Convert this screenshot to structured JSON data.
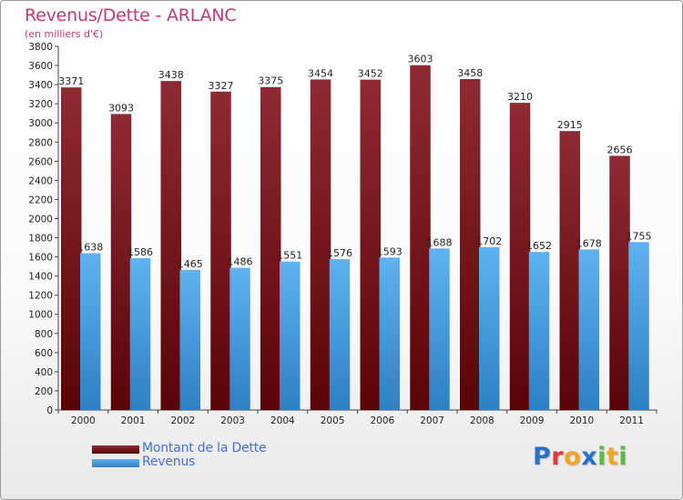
{
  "chart_data": {
    "type": "bar",
    "title": "Revenus/Dette - ARLANC",
    "subtitle": "(en milliers d'€)",
    "categories": [
      "2000",
      "2001",
      "2002",
      "2003",
      "2004",
      "2005",
      "2006",
      "2007",
      "2008",
      "2009",
      "2010",
      "2011"
    ],
    "series": [
      {
        "name": "Montant de la Dette",
        "color": "#7d1c22",
        "values": [
          3371,
          3093,
          3438,
          3327,
          3375,
          3454,
          3452,
          3603,
          3458,
          3210,
          2915,
          2656
        ]
      },
      {
        "name": "Revenus",
        "color": "#4da6e8",
        "values": [
          1638,
          1586,
          1465,
          1486,
          1551,
          1576,
          1593,
          1688,
          1702,
          1652,
          1678,
          1755
        ]
      }
    ],
    "ylim": [
      0,
      3800
    ],
    "ytick_step": 200,
    "grid": false,
    "legend": "bottom-left"
  },
  "logo": {
    "letters": [
      {
        "ch": "P",
        "color": "#2a72c9"
      },
      {
        "ch": "r",
        "color": "#e0393e"
      },
      {
        "ch": "o",
        "color": "#f4a323"
      },
      {
        "ch": "x",
        "color": "#2a72c9"
      },
      {
        "ch": "i",
        "color": "#5dba47"
      },
      {
        "ch": "t",
        "color": "#f4a323"
      },
      {
        "ch": "i",
        "color": "#5dba47"
      }
    ]
  }
}
